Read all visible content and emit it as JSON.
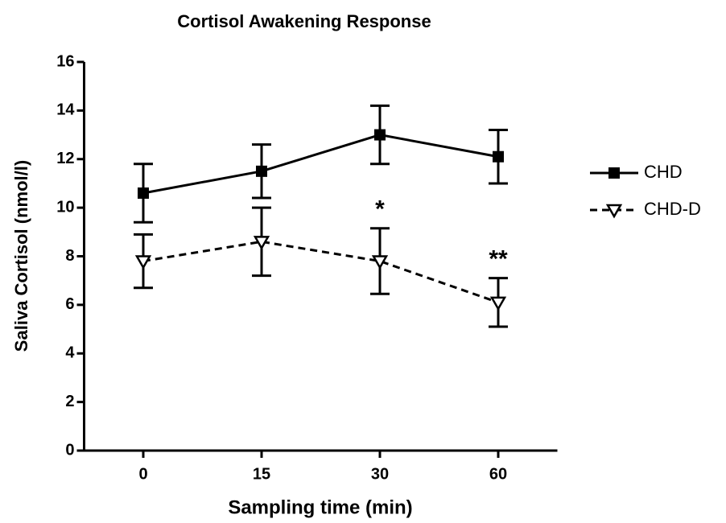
{
  "chart_data": {
    "type": "line",
    "title": "Cortisol Awakening Response",
    "xlabel": "Sampling time (min)",
    "ylabel": "Saliva Cortisol (nmol/l)",
    "categories": [
      "0",
      "15",
      "30",
      "60"
    ],
    "series": [
      {
        "name": "CHD",
        "color": "#000000",
        "line_style": "solid",
        "marker": "square",
        "values": [
          10.6,
          11.5,
          13.0,
          12.1
        ],
        "errors": [
          1.2,
          1.1,
          1.2,
          1.1
        ]
      },
      {
        "name": "CHD-D",
        "color": "#000000",
        "line_style": "dashed",
        "marker": "triangle-down",
        "values": [
          7.8,
          8.6,
          7.8,
          6.1
        ],
        "errors": [
          1.1,
          1.4,
          1.35,
          1.0
        ]
      }
    ],
    "annotations": [
      {
        "text": "*",
        "series": "CHD-D",
        "category": "30"
      },
      {
        "text": "**",
        "series": "CHD-D",
        "category": "60"
      }
    ],
    "ylim": [
      0,
      16
    ],
    "yticks": [
      0,
      2,
      4,
      6,
      8,
      10,
      12,
      14,
      16
    ],
    "grid": false,
    "legend": "right"
  }
}
